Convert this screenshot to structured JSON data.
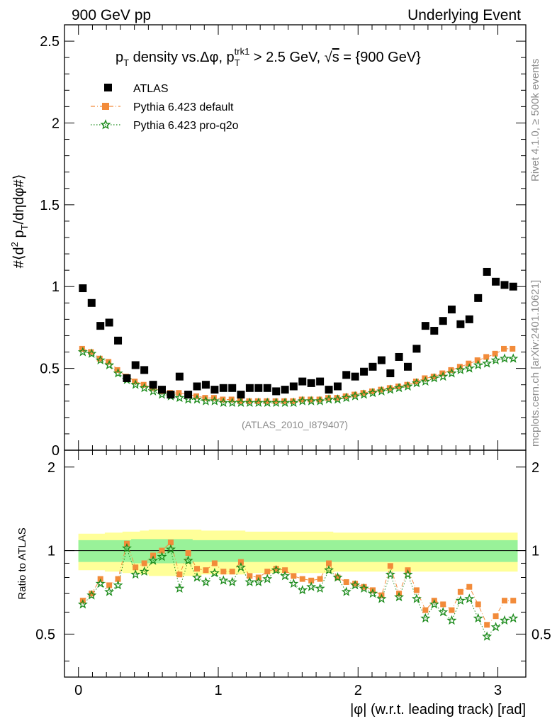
{
  "header": {
    "left": "900 GeV pp",
    "right": "Underlying Event"
  },
  "side_labels": {
    "rivet": "Rivet 4.1.0, ≥ 500k events",
    "mcplots": "mcplots.cern.ch [arXiv:2401.10621]"
  },
  "chart_data": [
    {
      "type": "scatter",
      "title": "p_T density vs.Δφ, p_T^trk1 > 2.5 GeV, √s = {900 GeV}",
      "title_parts": {
        "a": "p",
        "a_sub": "T",
        "b": " density vs.Δφ, p",
        "b_sub": "T",
        "b_sup": "trk1",
        "c": " > 2.5 GeV, ",
        "sqrt": "√",
        "s": "s",
        "d": " = {900 GeV}"
      },
      "ylabel": "#⟨d² p_T/dηdφ#⟩",
      "ylabel_parts": {
        "a": "#⟨d",
        "sup": "2",
        "b": " p",
        "sub": "T",
        "c": "/dηdφ#⟩"
      },
      "xlim": [
        -0.1,
        3.2
      ],
      "ylim": [
        0,
        2.6
      ],
      "yticks": [
        0,
        0.5,
        1,
        1.5,
        2,
        2.5
      ],
      "ytick_labels": [
        "0",
        "0.5",
        "1",
        "1.5",
        "2",
        "2.5"
      ],
      "xticks": [
        0,
        1,
        2,
        3
      ],
      "watermark": "(ATLAS_2010_I879407)",
      "legend": [
        "ATLAS",
        "Pythia 6.423 default",
        "Pythia 6.423 pro-q2o"
      ],
      "x": [
        0.031,
        0.094,
        0.157,
        0.22,
        0.283,
        0.346,
        0.408,
        0.471,
        0.534,
        0.597,
        0.66,
        0.723,
        0.785,
        0.848,
        0.911,
        0.974,
        1.037,
        1.1,
        1.162,
        1.225,
        1.288,
        1.351,
        1.414,
        1.477,
        1.539,
        1.602,
        1.665,
        1.728,
        1.791,
        1.854,
        1.916,
        1.979,
        2.042,
        2.105,
        2.168,
        2.231,
        2.293,
        2.356,
        2.419,
        2.482,
        2.545,
        2.608,
        2.67,
        2.733,
        2.796,
        2.859,
        2.922,
        2.985,
        3.048,
        3.11
      ],
      "series": [
        {
          "name": "ATLAS",
          "color": "#000000",
          "values": [
            0.99,
            0.9,
            0.76,
            0.78,
            0.67,
            0.44,
            0.52,
            0.49,
            0.4,
            0.37,
            0.34,
            0.45,
            0.34,
            0.39,
            0.4,
            0.37,
            0.38,
            0.38,
            0.34,
            0.38,
            0.38,
            0.38,
            0.36,
            0.37,
            0.39,
            0.42,
            0.41,
            0.42,
            0.37,
            0.39,
            0.46,
            0.45,
            0.48,
            0.51,
            0.55,
            0.47,
            0.57,
            0.51,
            0.62,
            0.76,
            0.73,
            0.79,
            0.86,
            0.77,
            0.8,
            0.93,
            1.09,
            1.03,
            1.01,
            1.0
          ]
        },
        {
          "name": "Pythia 6.423 default",
          "color": "#f28b3a",
          "values": [
            0.62,
            0.6,
            0.56,
            0.54,
            0.49,
            0.45,
            0.42,
            0.4,
            0.38,
            0.36,
            0.35,
            0.35,
            0.34,
            0.33,
            0.32,
            0.32,
            0.31,
            0.31,
            0.3,
            0.3,
            0.3,
            0.3,
            0.3,
            0.3,
            0.3,
            0.31,
            0.31,
            0.31,
            0.32,
            0.32,
            0.33,
            0.34,
            0.35,
            0.36,
            0.37,
            0.38,
            0.39,
            0.4,
            0.42,
            0.44,
            0.45,
            0.47,
            0.49,
            0.51,
            0.53,
            0.55,
            0.57,
            0.59,
            0.62,
            0.62
          ]
        },
        {
          "name": "Pythia 6.423 pro-q2o",
          "color": "#1a8a1a",
          "values": [
            0.6,
            0.59,
            0.55,
            0.52,
            0.47,
            0.43,
            0.4,
            0.38,
            0.36,
            0.34,
            0.33,
            0.32,
            0.31,
            0.31,
            0.3,
            0.3,
            0.29,
            0.29,
            0.29,
            0.29,
            0.29,
            0.29,
            0.29,
            0.29,
            0.29,
            0.3,
            0.3,
            0.3,
            0.31,
            0.31,
            0.32,
            0.33,
            0.34,
            0.35,
            0.36,
            0.37,
            0.38,
            0.39,
            0.41,
            0.42,
            0.44,
            0.45,
            0.47,
            0.49,
            0.5,
            0.52,
            0.53,
            0.55,
            0.56,
            0.56
          ]
        }
      ]
    },
    {
      "type": "scatter",
      "title": "",
      "ylabel": "Ratio to ATLAS",
      "xlabel": "|φ| (w.r.t. leading track) [rad]",
      "xlim": [
        -0.1,
        3.2
      ],
      "ylim": [
        0.35,
        2.3
      ],
      "yticks": [
        0.5,
        1,
        2
      ],
      "ytick_labels": [
        "0.5",
        "1",
        "2"
      ],
      "xticks": [
        0,
        1,
        2,
        3
      ],
      "xtick_labels": [
        "0",
        "1",
        "2",
        "3"
      ],
      "reference_line": 1,
      "bands": {
        "stat_half_width": [
          0.09,
          0.09,
          0.09,
          0.09,
          0.09,
          0.09,
          0.1,
          0.1,
          0.1,
          0.1,
          0.1,
          0.1,
          0.1,
          0.09,
          0.09,
          0.09,
          0.09,
          0.09,
          0.09,
          0.09,
          0.09,
          0.09,
          0.09,
          0.09,
          0.09,
          0.09,
          0.09,
          0.09,
          0.09,
          0.09,
          0.09,
          0.09,
          0.09,
          0.09,
          0.09,
          0.09,
          0.09,
          0.09,
          0.09,
          0.09,
          0.09,
          0.09,
          0.09,
          0.09,
          0.09,
          0.09,
          0.09,
          0.09,
          0.09,
          0.09
        ],
        "total_half_width": [
          0.15,
          0.15,
          0.15,
          0.16,
          0.16,
          0.17,
          0.17,
          0.18,
          0.19,
          0.19,
          0.19,
          0.19,
          0.19,
          0.19,
          0.18,
          0.18,
          0.18,
          0.18,
          0.18,
          0.17,
          0.17,
          0.17,
          0.17,
          0.17,
          0.17,
          0.17,
          0.17,
          0.17,
          0.17,
          0.16,
          0.16,
          0.16,
          0.16,
          0.16,
          0.16,
          0.16,
          0.16,
          0.16,
          0.16,
          0.16,
          0.16,
          0.16,
          0.16,
          0.16,
          0.16,
          0.16,
          0.16,
          0.16,
          0.16,
          0.16
        ],
        "stat_color": "#99f299",
        "total_color": "#ffff99"
      },
      "series": [
        {
          "name": "Pythia 6.423 default",
          "color": "#f28b3a",
          "values": [
            0.66,
            0.7,
            0.79,
            0.75,
            0.79,
            1.06,
            0.87,
            0.9,
            0.96,
            1.0,
            1.07,
            0.82,
            0.98,
            0.86,
            0.85,
            0.9,
            0.84,
            0.84,
            0.91,
            0.81,
            0.8,
            0.84,
            0.86,
            0.85,
            0.81,
            0.79,
            0.78,
            0.79,
            0.9,
            0.8,
            0.77,
            0.76,
            0.74,
            0.72,
            0.69,
            0.88,
            0.7,
            0.85,
            0.72,
            0.61,
            0.66,
            0.64,
            0.61,
            0.71,
            0.74,
            0.64,
            0.54,
            0.58,
            0.66,
            0.66
          ]
        },
        {
          "name": "Pythia 6.423 pro-q2o",
          "color": "#1a8a1a",
          "values": [
            0.64,
            0.69,
            0.76,
            0.71,
            0.75,
            1.02,
            0.82,
            0.84,
            0.92,
            0.95,
            1.01,
            0.73,
            0.92,
            0.8,
            0.77,
            0.83,
            0.78,
            0.77,
            0.87,
            0.77,
            0.77,
            0.79,
            0.85,
            0.81,
            0.76,
            0.72,
            0.74,
            0.73,
            0.85,
            0.8,
            0.71,
            0.75,
            0.73,
            0.7,
            0.67,
            0.82,
            0.68,
            0.82,
            0.67,
            0.57,
            0.64,
            0.6,
            0.56,
            0.66,
            0.67,
            0.57,
            0.49,
            0.53,
            0.56,
            0.57
          ]
        }
      ]
    }
  ]
}
